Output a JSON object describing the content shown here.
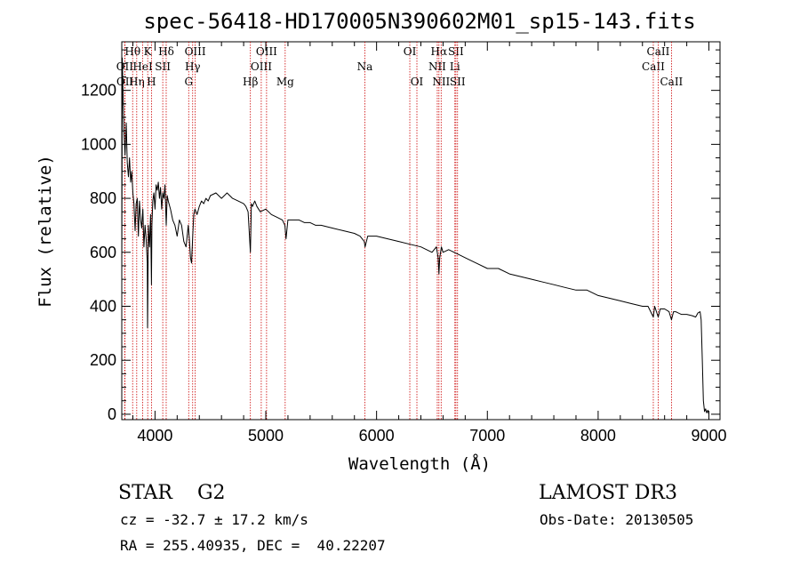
{
  "chart_data": {
    "type": "line",
    "title": "spec-56418-HD170005N390602M01_sp15-143.fits",
    "xlabel": "Wavelength (Å)",
    "ylabel": "Flux (relative)",
    "xlim": [
      3700,
      9100
    ],
    "ylim": [
      -20,
      1380
    ],
    "xticks": [
      4000,
      5000,
      6000,
      7000,
      8000,
      9000
    ],
    "yticks": [
      0,
      200,
      400,
      600,
      800,
      1000,
      1200
    ],
    "grid": false,
    "series": [
      {
        "name": "flux",
        "x": [
          3700,
          3705,
          3712,
          3720,
          3730,
          3740,
          3750,
          3760,
          3770,
          3780,
          3790,
          3800,
          3810,
          3820,
          3830,
          3840,
          3850,
          3860,
          3870,
          3880,
          3890,
          3900,
          3910,
          3920,
          3930,
          3933,
          3936,
          3940,
          3950,
          3960,
          3968,
          3972,
          3980,
          3990,
          4000,
          4010,
          4020,
          4030,
          4040,
          4050,
          4060,
          4070,
          4080,
          4090,
          4101,
          4110,
          4120,
          4140,
          4160,
          4180,
          4200,
          4220,
          4240,
          4260,
          4280,
          4300,
          4310,
          4320,
          4330,
          4340,
          4350,
          4360,
          4380,
          4400,
          4420,
          4440,
          4460,
          4480,
          4500,
          4550,
          4600,
          4650,
          4700,
          4750,
          4800,
          4820,
          4840,
          4861,
          4870,
          4880,
          4900,
          4920,
          4950,
          5000,
          5050,
          5100,
          5150,
          5172,
          5183,
          5200,
          5250,
          5300,
          5350,
          5400,
          5450,
          5500,
          5600,
          5700,
          5800,
          5850,
          5889,
          5896,
          5920,
          6000,
          6100,
          6200,
          6300,
          6400,
          6500,
          6540,
          6556,
          6563,
          6570,
          6585,
          6600,
          6650,
          6700,
          6750,
          6800,
          6900,
          7000,
          7100,
          7200,
          7300,
          7400,
          7500,
          7600,
          7700,
          7800,
          7900,
          8000,
          8100,
          8200,
          8300,
          8400,
          8450,
          8498,
          8510,
          8542,
          8560,
          8600,
          8640,
          8662,
          8680,
          8700,
          8750,
          8800,
          8850,
          8880,
          8900,
          8920,
          8930,
          8940,
          8950,
          8960,
          8970,
          8980,
          8990,
          9000
        ],
        "y": [
          520,
          1320,
          1180,
          1040,
          960,
          1080,
          930,
          880,
          950,
          860,
          900,
          820,
          780,
          680,
          780,
          800,
          660,
          790,
          720,
          690,
          760,
          620,
          700,
          650,
          560,
          320,
          480,
          700,
          620,
          740,
          480,
          700,
          790,
          820,
          760,
          850,
          830,
          860,
          800,
          840,
          760,
          820,
          800,
          850,
          700,
          810,
          790,
          760,
          720,
          700,
          660,
          720,
          700,
          640,
          620,
          700,
          650,
          580,
          560,
          660,
          740,
          760,
          740,
          770,
          790,
          780,
          800,
          790,
          810,
          820,
          800,
          820,
          800,
          790,
          780,
          770,
          750,
          600,
          780,
          770,
          790,
          770,
          750,
          760,
          740,
          730,
          720,
          700,
          650,
          720,
          720,
          720,
          710,
          710,
          700,
          700,
          690,
          680,
          670,
          660,
          640,
          620,
          660,
          660,
          650,
          640,
          630,
          620,
          600,
          620,
          580,
          520,
          580,
          620,
          600,
          610,
          600,
          590,
          580,
          560,
          540,
          540,
          520,
          510,
          500,
          490,
          480,
          470,
          460,
          460,
          440,
          430,
          420,
          410,
          400,
          400,
          360,
          400,
          360,
          390,
          390,
          380,
          350,
          380,
          380,
          370,
          370,
          365,
          360,
          375,
          380,
          350,
          200,
          50,
          10,
          20,
          5,
          15,
          0
        ]
      }
    ],
    "line_markers": [
      {
        "wavelength": 3727,
        "label": "OII",
        "row": 2
      },
      {
        "wavelength": 3729,
        "label": "OII",
        "row": 3
      },
      {
        "wavelength": 3798,
        "label": "Hθ",
        "row": 1
      },
      {
        "wavelength": 3835,
        "label": "Hη",
        "row": 3
      },
      {
        "wavelength": 3889,
        "label": "HeI",
        "row": 2
      },
      {
        "wavelength": 3934,
        "label": "K",
        "row": 1
      },
      {
        "wavelength": 3968,
        "label": "H",
        "row": 3
      },
      {
        "wavelength": 4070,
        "label": "SII",
        "row": 2
      },
      {
        "wavelength": 4101,
        "label": "Hδ",
        "row": 1
      },
      {
        "wavelength": 4304,
        "label": "G",
        "row": 3
      },
      {
        "wavelength": 4340,
        "label": "Hγ",
        "row": 2
      },
      {
        "wavelength": 4363,
        "label": "OIII",
        "row": 1
      },
      {
        "wavelength": 4861,
        "label": "Hβ",
        "row": 3
      },
      {
        "wavelength": 4959,
        "label": "OIII",
        "row": 2
      },
      {
        "wavelength": 5007,
        "label": "OIII",
        "row": 1
      },
      {
        "wavelength": 5175,
        "label": "Mg",
        "row": 3
      },
      {
        "wavelength": 5894,
        "label": "Na",
        "row": 2
      },
      {
        "wavelength": 6300,
        "label": "OI",
        "row": 1
      },
      {
        "wavelength": 6364,
        "label": "OI",
        "row": 3
      },
      {
        "wavelength": 6548,
        "label": "NII",
        "row": 2
      },
      {
        "wavelength": 6563,
        "label": "Hα",
        "row": 1
      },
      {
        "wavelength": 6583,
        "label": "NII",
        "row": 3
      },
      {
        "wavelength": 6707,
        "label": "Li",
        "row": 2
      },
      {
        "wavelength": 6716,
        "label": "SII",
        "row": 1
      },
      {
        "wavelength": 6731,
        "label": "SII",
        "row": 3
      },
      {
        "wavelength": 8498,
        "label": "CaII",
        "row": 2
      },
      {
        "wavelength": 8542,
        "label": "CaII",
        "row": 1
      },
      {
        "wavelength": 8662,
        "label": "CaII",
        "row": 3
      }
    ],
    "colors": {
      "spectrum": "#000000",
      "marker_line": "#cc0000",
      "axes": "#000000"
    }
  },
  "info": {
    "class": "STAR    G2",
    "survey": "LAMOST DR3",
    "cz": "cz = -32.7 ± 17.2 km/s",
    "obs_date": "Obs-Date: 20130505",
    "radec": "RA = 255.40935, DEC =  40.22207"
  }
}
